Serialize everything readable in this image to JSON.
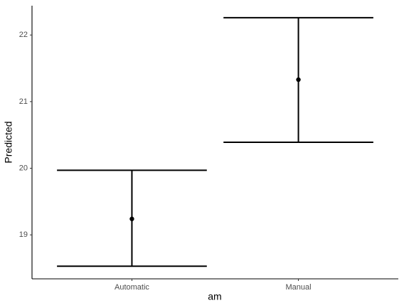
{
  "chart_data": {
    "type": "errorbar",
    "x_label": "am",
    "y_label": "Predicted",
    "categories": [
      "Automatic",
      "Manual"
    ],
    "values": [
      19.24,
      21.33
    ],
    "lower": [
      18.53,
      20.39
    ],
    "upper": [
      19.97,
      22.26
    ],
    "color": "#000000",
    "ylim": [
      18.34,
      22.44
    ],
    "yticks": [
      19,
      20,
      21,
      22
    ],
    "grid": false
  }
}
